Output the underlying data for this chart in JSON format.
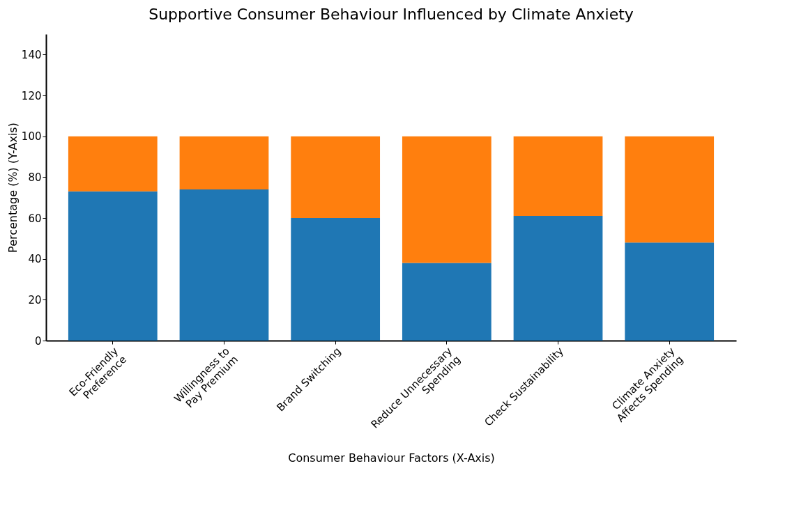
{
  "chart_data": {
    "type": "bar",
    "title": "Supportive Consumer Behaviour Influenced by Climate Anxiety",
    "xlabel": "Consumer Behaviour Factors (X-Axis)",
    "ylabel": "Percentage (%) (Y-Axis)",
    "categories": [
      "Eco-Friendly\nPreference",
      "Willingness to\nPay Premium",
      "Brand Switching",
      "Reduce Unnecessary\nSpending",
      "Check Sustainability",
      "Climate Anxiety\nAffects Spending"
    ],
    "stacked": true,
    "series": [
      {
        "color": "#1f77b4",
        "values": [
          73,
          74,
          60,
          38,
          61,
          48
        ]
      },
      {
        "color": "#ff7f0e",
        "values": [
          27,
          26,
          40,
          62,
          39,
          52
        ]
      }
    ],
    "ylim": [
      0,
      150
    ],
    "yticks": [
      0,
      20,
      40,
      60,
      80,
      100,
      120,
      140
    ],
    "grid": false,
    "legend": false
  }
}
